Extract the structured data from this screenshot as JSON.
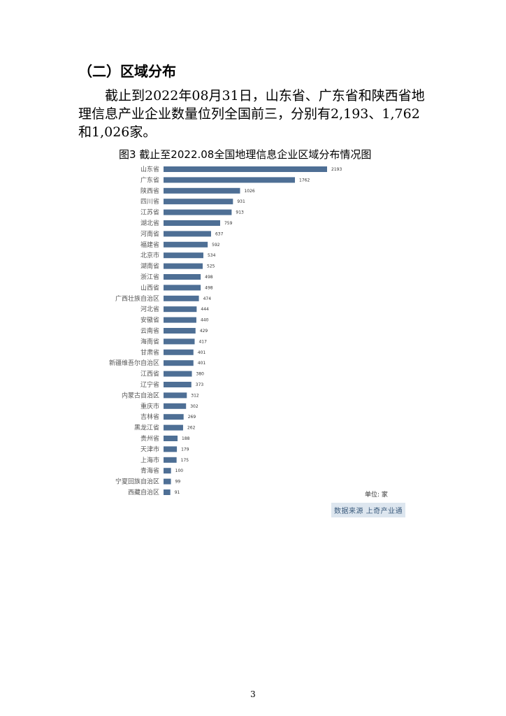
{
  "section_heading": "（二）区域分布",
  "paragraph": "截止到2022年08月31日，山东省、广东省和陕西省地理信息产业企业数量位列全国前三，分别有2,193、1,762和1,026家。",
  "figure_title": "图3 截止至2022.08全国地理信息企业区域分布情况图",
  "unit_label": "单位: 家",
  "source_label": "数据来源 上奇产业通",
  "page_number": "3",
  "bar_color": "#4e6f95",
  "chart_data": {
    "type": "bar",
    "orientation": "horizontal",
    "title": "图3 截止至2022.08全国地理信息企业区域分布情况图",
    "categories": [
      "山东省",
      "广东省",
      "陕西省",
      "四川省",
      "江苏省",
      "湖北省",
      "河南省",
      "福建省",
      "北京市",
      "湖南省",
      "浙江省",
      "山西省",
      "广西壮族自治区",
      "河北省",
      "安徽省",
      "云南省",
      "海南省",
      "甘肃省",
      "新疆维吾尔自治区",
      "江西省",
      "辽宁省",
      "内蒙古自治区",
      "重庆市",
      "吉林省",
      "黑龙江省",
      "贵州省",
      "天津市",
      "上海市",
      "青海省",
      "宁夏回族自治区",
      "西藏自治区"
    ],
    "values": [
      2193,
      1762,
      1026,
      931,
      913,
      759,
      637,
      592,
      534,
      525,
      498,
      498,
      474,
      444,
      440,
      429,
      417,
      401,
      401,
      380,
      373,
      312,
      302,
      269,
      262,
      188,
      179,
      175,
      100,
      99,
      91
    ],
    "xlim": [
      0,
      2193
    ],
    "grid": false,
    "legend": "none"
  }
}
